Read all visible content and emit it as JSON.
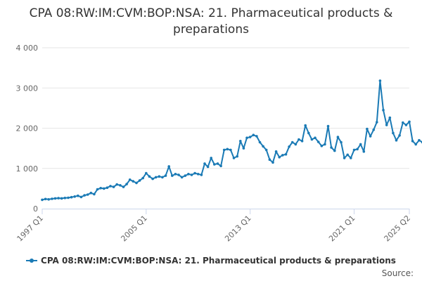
{
  "title": "CPA 08:RW:IM:CVM:BOP:NSA: 21. Pharmaceutical products & preparations",
  "source_label": "Source:",
  "accent_color": "#1a7ab5",
  "chart_data": {
    "type": "line",
    "title": "CPA 08:RW:IM:CVM:BOP:NSA: 21. Pharmaceutical products & preparations",
    "xlabel": "",
    "ylabel": "",
    "ylim": [
      0,
      4000
    ],
    "y_ticks": [
      0,
      1000,
      2000,
      3000,
      4000
    ],
    "y_tick_labels": [
      "0",
      "1 000",
      "2 000",
      "3 000",
      "4 000"
    ],
    "x_ticks": [
      "1997 Q1",
      "2005 Q1",
      "2013 Q1",
      "2021 Q1",
      "2025 Q2"
    ],
    "grid": true,
    "legend": "bottom",
    "x_start": "1997 Q1",
    "x_end": "2025 Q2",
    "series": [
      {
        "name": "CPA 08:RW:IM:CVM:BOP:NSA: 21. Pharmaceutical products & preparations",
        "color": "#1a7ab5",
        "values": [
          220,
          240,
          230,
          245,
          255,
          260,
          255,
          265,
          270,
          285,
          300,
          320,
          290,
          330,
          350,
          390,
          360,
          480,
          510,
          500,
          520,
          560,
          540,
          600,
          580,
          540,
          610,
          720,
          680,
          640,
          700,
          760,
          880,
          800,
          740,
          780,
          800,
          780,
          820,
          1050,
          820,
          860,
          840,
          780,
          820,
          860,
          840,
          880,
          860,
          840,
          1120,
          1040,
          1260,
          1100,
          1120,
          1060,
          1460,
          1480,
          1460,
          1260,
          1300,
          1680,
          1500,
          1760,
          1780,
          1830,
          1800,
          1650,
          1550,
          1460,
          1220,
          1150,
          1420,
          1280,
          1330,
          1350,
          1540,
          1650,
          1600,
          1720,
          1680,
          2070,
          1880,
          1720,
          1760,
          1660,
          1560,
          1600,
          2050,
          1520,
          1440,
          1780,
          1650,
          1260,
          1340,
          1260,
          1460,
          1480,
          1600,
          1420,
          1980,
          1800,
          1960,
          2150,
          3180,
          2450,
          2080,
          2260,
          1880,
          1700,
          1820,
          2140,
          2080,
          2160,
          1680,
          1600,
          1700,
          1650
        ]
      }
    ]
  }
}
